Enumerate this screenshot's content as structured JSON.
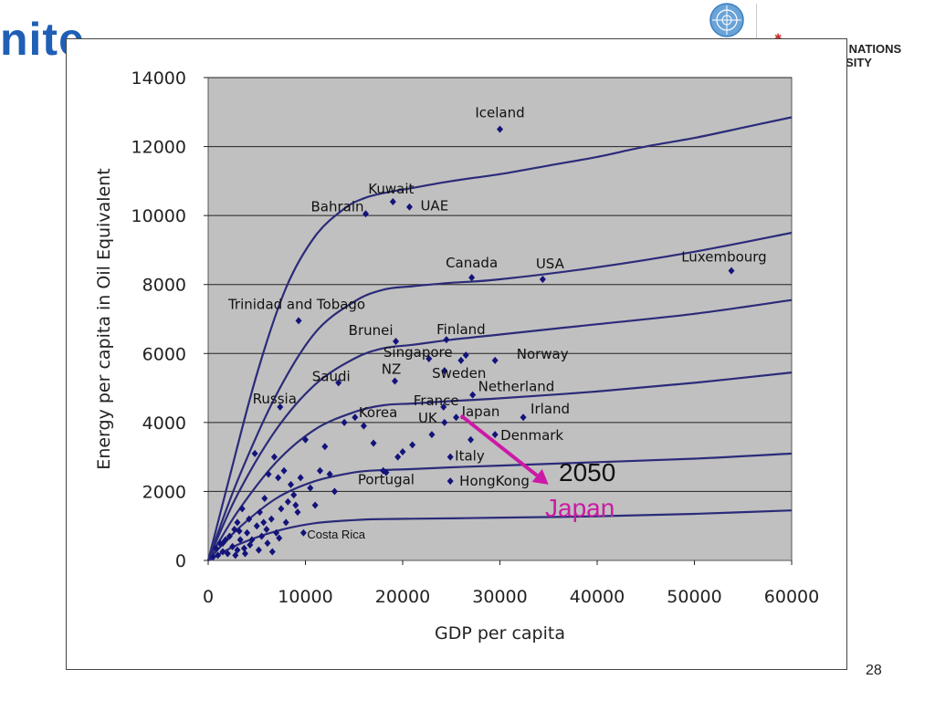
{
  "header": {
    "left_logo_text": "nite",
    "right_logo_text": "ED NATIONS\nERSITY"
  },
  "page_number": "28",
  "annotation": {
    "year": "2050",
    "country": "Japan",
    "arrow_color": "#cc1aa6",
    "arrow_from": [
      26000,
      4200
    ],
    "arrow_to": [
      35000,
      2200
    ]
  },
  "colors": {
    "plot_bg": "#c0c0c0",
    "curve": "#2b2b7a",
    "point": "#13137a"
  },
  "chart_data": {
    "type": "scatter",
    "title": "",
    "xlabel": "GDP per capita",
    "ylabel": "Energy per capita in Oil Equivalent",
    "xlim": [
      0,
      60000
    ],
    "ylim": [
      0,
      14000
    ],
    "xticks": [
      "0",
      "10000",
      "20000",
      "30000",
      "40000",
      "50000",
      "60000"
    ],
    "yticks": [
      "0",
      "2000",
      "4000",
      "6000",
      "8000",
      "10000",
      "12000",
      "14000"
    ],
    "grid": "horizontal",
    "labeled_points": [
      {
        "label": "Iceland",
        "x": 30000,
        "y": 12500
      },
      {
        "label": "Kuwait",
        "x": 19000,
        "y": 10400
      },
      {
        "label": "UAE",
        "x": 20700,
        "y": 10250
      },
      {
        "label": "Bahrain",
        "x": 16200,
        "y": 10050
      },
      {
        "label": "Canada",
        "x": 27100,
        "y": 8200
      },
      {
        "label": "USA",
        "x": 34400,
        "y": 8150
      },
      {
        "label": "Luxembourg",
        "x": 53800,
        "y": 8400
      },
      {
        "label": "Trinidad and Tobago",
        "x": 9300,
        "y": 6950
      },
      {
        "label": "Brunei",
        "x": 19300,
        "y": 6350
      },
      {
        "label": "Finland",
        "x": 24500,
        "y": 6400
      },
      {
        "label": "Singapore",
        "x": 22700,
        "y": 5850
      },
      {
        "label": "Norway",
        "x": 29500,
        "y": 5800
      },
      {
        "label": "Saudi",
        "x": 13400,
        "y": 5150
      },
      {
        "label": "NZ",
        "x": 19200,
        "y": 5200
      },
      {
        "label": "Sweden",
        "x": 24300,
        "y": 5500
      },
      {
        "label": "Netherland",
        "x": 27200,
        "y": 4800
      },
      {
        "label": "Russia",
        "x": 7400,
        "y": 4450
      },
      {
        "label": "Korea",
        "x": 15100,
        "y": 4150
      },
      {
        "label": "France",
        "x": 24200,
        "y": 4450
      },
      {
        "label": "Irland",
        "x": 32400,
        "y": 4150
      },
      {
        "label": "UK",
        "x": 24300,
        "y": 4000
      },
      {
        "label": "Japan",
        "x": 25500,
        "y": 4150
      },
      {
        "label": "Denmark",
        "x": 29500,
        "y": 3650
      },
      {
        "label": "Italy",
        "x": 24900,
        "y": 3000
      },
      {
        "label": "Portugal",
        "x": 18300,
        "y": 2550
      },
      {
        "label": "HongKong",
        "x": 24900,
        "y": 2300
      },
      {
        "label": "Costa Rica",
        "x": 9800,
        "y": 800
      }
    ],
    "points": [
      [
        500,
        100
      ],
      [
        800,
        350
      ],
      [
        1000,
        150
      ],
      [
        1200,
        500
      ],
      [
        1500,
        250
      ],
      [
        1800,
        600
      ],
      [
        2000,
        200
      ],
      [
        2200,
        700
      ],
      [
        2500,
        400
      ],
      [
        2700,
        900
      ],
      [
        3000,
        300
      ],
      [
        3000,
        1100
      ],
      [
        3300,
        600
      ],
      [
        3500,
        1500
      ],
      [
        3700,
        350
      ],
      [
        4000,
        800
      ],
      [
        4200,
        1200
      ],
      [
        4500,
        600
      ],
      [
        4800,
        3100
      ],
      [
        5000,
        1000
      ],
      [
        5300,
        1400
      ],
      [
        5500,
        700
      ],
      [
        5800,
        1800
      ],
      [
        6000,
        900
      ],
      [
        6200,
        2500
      ],
      [
        6500,
        1200
      ],
      [
        6800,
        3000
      ],
      [
        7000,
        800
      ],
      [
        7200,
        2400
      ],
      [
        7500,
        1500
      ],
      [
        7800,
        2600
      ],
      [
        8000,
        1100
      ],
      [
        8200,
        1700
      ],
      [
        8500,
        2200
      ],
      [
        8800,
        1900
      ],
      [
        9000,
        1600
      ],
      [
        9200,
        1400
      ],
      [
        9500,
        2400
      ],
      [
        10000,
        3500
      ],
      [
        10500,
        2100
      ],
      [
        11000,
        1600
      ],
      [
        11500,
        2600
      ],
      [
        12000,
        3300
      ],
      [
        12500,
        2500
      ],
      [
        13000,
        2000
      ],
      [
        14000,
        4000
      ],
      [
        16000,
        3900
      ],
      [
        17000,
        3400
      ],
      [
        18000,
        2600
      ],
      [
        19500,
        3000
      ],
      [
        20000,
        3150
      ],
      [
        21000,
        3350
      ],
      [
        23000,
        3650
      ],
      [
        26000,
        5800
      ],
      [
        26500,
        5950
      ],
      [
        27000,
        3500
      ],
      [
        3800,
        200
      ],
      [
        1500,
        500
      ],
      [
        2800,
        150
      ],
      [
        4300,
        450
      ],
      [
        5200,
        300
      ],
      [
        6100,
        500
      ],
      [
        6600,
        250
      ],
      [
        7300,
        650
      ],
      [
        5700,
        1100
      ],
      [
        3200,
        850
      ]
    ],
    "curves": [
      {
        "x": [
          0,
          2000,
          5000,
          8000,
          11000,
          14000,
          16000,
          18000,
          21000,
          25000,
          30000,
          35000,
          40000,
          45000,
          50000,
          55000,
          60000
        ],
        "y": [
          0,
          2200,
          5400,
          7900,
          9400,
          10200,
          10500,
          10650,
          10800,
          11000,
          11200,
          11450,
          11700,
          12000,
          12250,
          12550,
          12850
        ]
      },
      {
        "x": [
          0,
          3000,
          7000,
          11000,
          15000,
          18000,
          21000,
          25000,
          30000,
          40000,
          50000,
          60000
        ],
        "y": [
          0,
          2300,
          4800,
          6600,
          7500,
          7850,
          7950,
          8050,
          8150,
          8500,
          8950,
          9500
        ]
      },
      {
        "x": [
          0,
          3000,
          7000,
          11000,
          15000,
          18000,
          21000,
          25000,
          30000,
          40000,
          50000,
          60000
        ],
        "y": [
          0,
          1900,
          3800,
          5100,
          5850,
          6150,
          6250,
          6400,
          6550,
          6850,
          7150,
          7550
        ]
      },
      {
        "x": [
          0,
          3000,
          7000,
          11000,
          15000,
          18000,
          21000,
          25000,
          30000,
          40000,
          50000,
          60000
        ],
        "y": [
          0,
          1400,
          2850,
          3800,
          4300,
          4500,
          4550,
          4620,
          4700,
          4900,
          5150,
          5450
        ]
      },
      {
        "x": [
          0,
          3000,
          7000,
          11000,
          15000,
          18000,
          21000,
          25000,
          30000,
          40000,
          50000,
          60000
        ],
        "y": [
          0,
          900,
          1800,
          2300,
          2550,
          2620,
          2650,
          2700,
          2750,
          2850,
          2950,
          3100
        ]
      },
      {
        "x": [
          0,
          3000,
          7000,
          11000,
          15000,
          18000,
          21000,
          25000,
          30000,
          40000,
          50000,
          60000
        ],
        "y": [
          0,
          450,
          850,
          1080,
          1170,
          1200,
          1210,
          1220,
          1240,
          1280,
          1350,
          1450
        ]
      }
    ]
  }
}
